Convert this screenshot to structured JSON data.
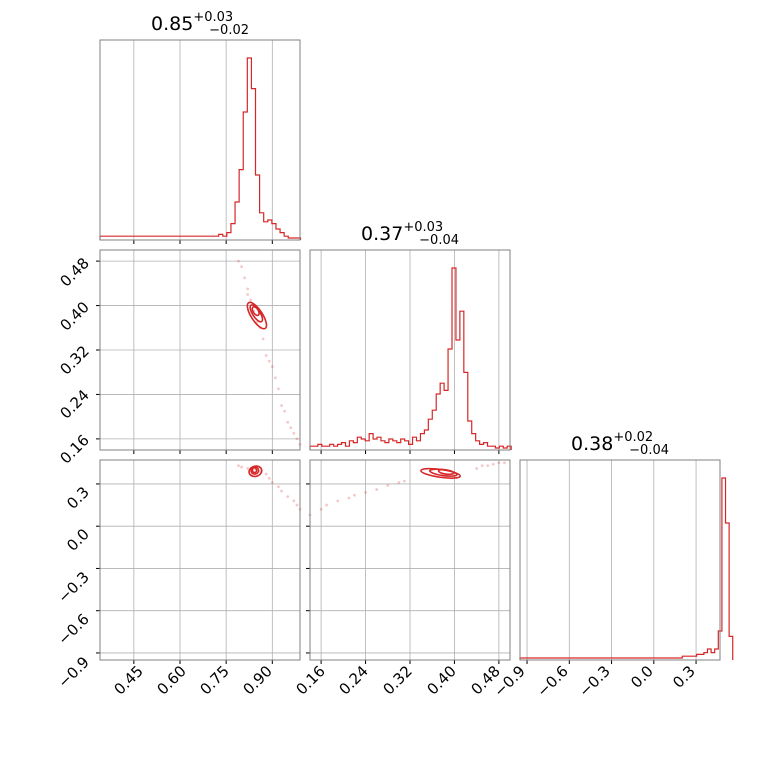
{
  "chart_data": {
    "type": "corner",
    "grid": true,
    "colors": {
      "series": "#d62728",
      "grid": "#b0b0b0",
      "frame": "#808080"
    },
    "parameters": [
      {
        "median": "0.85",
        "plus": "+0.03",
        "minus": "−0.02",
        "range": [
          0.34,
          0.99
        ],
        "ticks": [
          "0.45",
          "0.60",
          "0.75",
          "0.90"
        ]
      },
      {
        "median": "0.37",
        "plus": "+0.03",
        "minus": "−0.04",
        "range": [
          0.14,
          0.5
        ],
        "ticks": [
          "0.16",
          "0.24",
          "0.32",
          "0.40",
          "0.48"
        ]
      },
      {
        "median": "0.38",
        "plus": "+0.02",
        "minus": "−0.04",
        "range": [
          -0.95,
          0.47
        ],
        "ticks": [
          "−0.9",
          "−0.6",
          "−0.3",
          "0.0",
          "0.3"
        ]
      }
    ],
    "histograms": [
      {
        "x0": 0.34,
        "step": 0.0133,
        "counts": [
          1,
          1,
          1,
          1,
          1,
          1,
          1,
          1,
          1,
          1,
          1,
          1,
          1,
          1,
          1,
          1,
          1,
          1,
          1,
          1,
          1,
          1,
          1,
          1,
          1,
          1,
          1,
          1,
          1,
          2,
          1,
          3,
          8,
          20,
          38,
          70,
          100,
          83,
          35,
          14,
          9,
          10,
          8,
          5,
          3,
          1,
          0,
          0,
          0
        ]
      },
      {
        "x0": 0.14,
        "step": 0.0071,
        "counts": [
          1,
          1,
          2,
          1,
          1,
          2,
          1,
          2,
          3,
          1,
          4,
          3,
          6,
          5,
          4,
          8,
          5,
          6,
          4,
          3,
          5,
          4,
          3,
          5,
          4,
          2,
          6,
          4,
          8,
          10,
          16,
          21,
          30,
          36,
          32,
          55,
          100,
          60,
          76,
          42,
          15,
          8,
          4,
          2,
          3,
          1,
          1,
          0,
          1,
          0,
          1
        ]
      },
      {
        "x0": -0.95,
        "step": 0.0256,
        "counts": [
          0,
          0,
          0,
          0,
          0,
          0,
          0,
          0,
          0,
          0,
          0,
          0,
          0,
          0,
          0,
          0,
          0,
          0,
          0,
          0,
          0,
          0,
          0,
          0,
          0,
          0,
          0,
          0,
          0,
          0,
          0,
          0,
          0,
          0,
          0,
          0,
          0,
          0,
          0,
          0,
          0,
          0,
          0,
          0,
          0,
          1,
          1,
          1,
          1,
          2,
          2,
          3,
          5,
          3,
          5,
          15,
          100,
          75,
          12
        ]
      }
    ],
    "scatter_panels": [
      {
        "x_param": 0,
        "y_param": 1,
        "points": [
          [
            0.79,
            0.48
          ],
          [
            0.8,
            0.47
          ],
          [
            0.81,
            0.45
          ],
          [
            0.82,
            0.43
          ],
          [
            0.82,
            0.42
          ],
          [
            0.83,
            0.41
          ],
          [
            0.84,
            0.39
          ],
          [
            0.85,
            0.37
          ],
          [
            0.86,
            0.36
          ],
          [
            0.87,
            0.34
          ],
          [
            0.88,
            0.31
          ],
          [
            0.89,
            0.3
          ],
          [
            0.9,
            0.29
          ],
          [
            0.91,
            0.27
          ],
          [
            0.92,
            0.25
          ],
          [
            0.93,
            0.22
          ],
          [
            0.94,
            0.21
          ],
          [
            0.95,
            0.19
          ],
          [
            0.96,
            0.18
          ],
          [
            0.97,
            0.17
          ],
          [
            0.98,
            0.16
          ],
          [
            0.99,
            0.15
          ]
        ],
        "contours": [
          {
            "cx": 0.85,
            "cy": 0.382,
            "rx": 0.026,
            "ry": 0.05,
            "angle": 57
          },
          {
            "cx": 0.848,
            "cy": 0.386,
            "rx": 0.015,
            "ry": 0.032,
            "angle": 57
          },
          {
            "cx": 0.846,
            "cy": 0.39,
            "rx": 0.008,
            "ry": 0.016,
            "angle": 57
          }
        ]
      },
      {
        "x_param": 0,
        "y_param": 2,
        "points": [
          [
            0.79,
            0.43
          ],
          [
            0.8,
            0.42
          ],
          [
            0.82,
            0.41
          ],
          [
            0.84,
            0.41
          ],
          [
            0.86,
            0.39
          ],
          [
            0.88,
            0.37
          ],
          [
            0.89,
            0.34
          ],
          [
            0.9,
            0.31
          ],
          [
            0.92,
            0.28
          ],
          [
            0.93,
            0.25
          ],
          [
            0.95,
            0.21
          ],
          [
            0.97,
            0.18
          ],
          [
            0.98,
            0.15
          ],
          [
            0.99,
            0.12
          ]
        ],
        "contours": [
          {
            "cx": 0.845,
            "cy": 0.39,
            "rx": 0.038,
            "ry": 0.05,
            "angle": -15
          },
          {
            "cx": 0.843,
            "cy": 0.395,
            "rx": 0.022,
            "ry": 0.03,
            "angle": -15
          },
          {
            "cx": 0.842,
            "cy": 0.398,
            "rx": 0.012,
            "ry": 0.016,
            "angle": -15
          }
        ]
      },
      {
        "x_param": 1,
        "y_param": 2,
        "points": [
          [
            0.14,
            0.08
          ],
          [
            0.16,
            0.12
          ],
          [
            0.17,
            0.15
          ],
          [
            0.19,
            0.18
          ],
          [
            0.21,
            0.2
          ],
          [
            0.22,
            0.22
          ],
          [
            0.24,
            0.24
          ],
          [
            0.26,
            0.26
          ],
          [
            0.28,
            0.29
          ],
          [
            0.3,
            0.31
          ],
          [
            0.31,
            0.32
          ],
          [
            0.44,
            0.41
          ],
          [
            0.45,
            0.43
          ],
          [
            0.46,
            0.43
          ],
          [
            0.47,
            0.44
          ],
          [
            0.48,
            0.45
          ],
          [
            0.49,
            0.45
          ]
        ],
        "contours": [
          {
            "cx": 0.375,
            "cy": 0.375,
            "rx": 0.065,
            "ry": 0.035,
            "angle": 8
          },
          {
            "cx": 0.38,
            "cy": 0.38,
            "rx": 0.045,
            "ry": 0.022,
            "angle": 8
          },
          {
            "cx": 0.385,
            "cy": 0.385,
            "rx": 0.025,
            "ry": 0.012,
            "angle": 8
          }
        ]
      }
    ]
  }
}
